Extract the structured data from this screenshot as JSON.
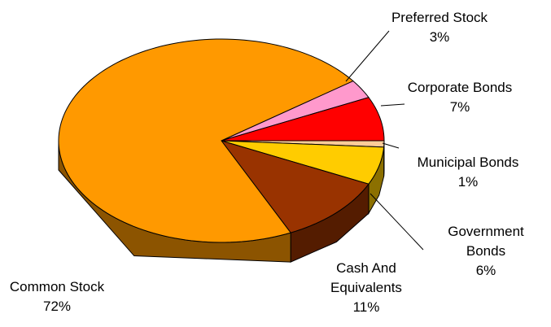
{
  "chart_data": {
    "type": "pie",
    "categories": [
      "Preferred Stock",
      "Corporate Bonds",
      "Municipal Bonds",
      "Government Bonds",
      "Cash And Equivalents",
      "Common Stock"
    ],
    "values": [
      3,
      7,
      1,
      6,
      11,
      72
    ],
    "value_labels": [
      "3%",
      "7%",
      "1%",
      "6%",
      "11%",
      "72%"
    ],
    "colors": [
      "#ff99cc",
      "#ff0000",
      "#ffcc99",
      "#ffcc00",
      "#993300",
      "#ff9900"
    ]
  }
}
